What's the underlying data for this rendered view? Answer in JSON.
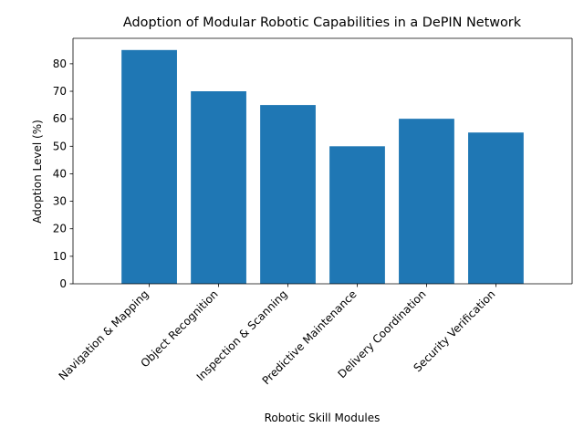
{
  "chart_data": {
    "type": "bar",
    "title": "Adoption of Modular Robotic Capabilities in a DePIN Network",
    "xlabel": "Robotic Skill Modules",
    "ylabel": "Adoption Level (%)",
    "categories": [
      "Navigation & Mapping",
      "Object Recognition",
      "Inspection & Scanning",
      "Predictive Maintenance",
      "Delivery Coordination",
      "Security Verification"
    ],
    "values": [
      85,
      70,
      65,
      50,
      60,
      55
    ],
    "ylim": [
      0,
      89.25
    ],
    "yticks": [
      0,
      10,
      20,
      30,
      40,
      50,
      60,
      70,
      80
    ],
    "bar_color": "#1f77b4",
    "grid": false,
    "legend": "none"
  }
}
